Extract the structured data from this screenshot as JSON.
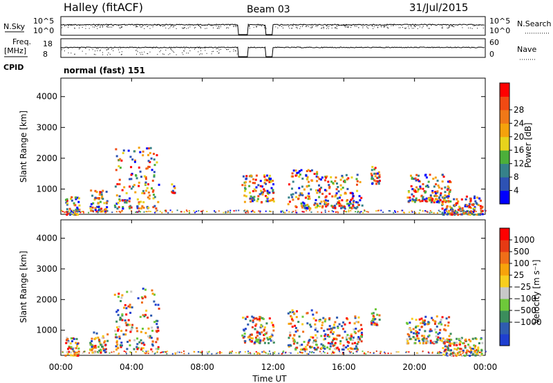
{
  "header": {
    "station": "Halley (fitACF)",
    "beam": "Beam 03",
    "date": "31/Jul/2015"
  },
  "info_panel": {
    "nsky_label": "N.Sky",
    "nsky_ticks": [
      "10^5",
      "10^0"
    ],
    "nsearch_label": "N.Search",
    "nsearch_ticks": [
      "10^5",
      "10^0"
    ],
    "freq_label": "Freq.",
    "freq_unit": "[MHz]",
    "freq_ticks": [
      "18",
      "8"
    ],
    "nave_label": "Nave",
    "nave_ticks": [
      "60",
      "0"
    ],
    "cpid_label": "CPID",
    "cpid_value": "normal (fast) 151"
  },
  "chart_data": [
    {
      "type": "heatmap",
      "title": "",
      "xlabel": "Time UT",
      "ylabel": "Slant Range [km]",
      "ylim": [
        180,
        4600
      ],
      "yticks": [
        1000,
        2000,
        3000,
        4000
      ],
      "colorbar": {
        "label": "Power [dB]",
        "ticks": [
          "4",
          "8",
          "12",
          "16",
          "20",
          "24",
          "28"
        ],
        "colors": [
          "#0000ff",
          "#2d52b4",
          "#36828a",
          "#4caf3a",
          "#e7d31c",
          "#f5a20c",
          "#f07818",
          "#f14a13",
          "#ff0000"
        ]
      },
      "series": [
        {
          "x": [
            0.2,
            1.0
          ],
          "y": [
            200,
            800
          ]
        },
        {
          "x": [
            1.6,
            2.6
          ],
          "y": [
            300,
            1000
          ]
        },
        {
          "x": [
            3.0,
            5.5
          ],
          "y": [
            400,
            2400
          ]
        },
        {
          "x": [
            6.2,
            6.4
          ],
          "y": [
            900,
            1200
          ]
        },
        {
          "x": [
            10.2,
            12.0
          ],
          "y": [
            600,
            1500
          ]
        },
        {
          "x": [
            12.8,
            14.5
          ],
          "y": [
            400,
            1700
          ]
        },
        {
          "x": [
            14.5,
            17.0
          ],
          "y": [
            400,
            1500
          ]
        },
        {
          "x": [
            17.5,
            18.0
          ],
          "y": [
            1200,
            1800
          ]
        },
        {
          "x": [
            19.5,
            22.0
          ],
          "y": [
            600,
            1500
          ]
        },
        {
          "x": [
            21.5,
            23.8
          ],
          "y": [
            200,
            800
          ]
        }
      ]
    },
    {
      "type": "heatmap",
      "title": "",
      "xlabel": "Time UT",
      "ylabel": "Slant Range [km]",
      "ylim": [
        180,
        4600
      ],
      "yticks": [
        1000,
        2000,
        3000,
        4000
      ],
      "xticks": [
        "00:00",
        "04:00",
        "08:00",
        "12:00",
        "16:00",
        "20:00",
        "00:00"
      ],
      "colorbar": {
        "label": "Velocity [m s⁻¹]",
        "ticks": [
          "1000",
          "500",
          "100",
          "25",
          "−25",
          "−100",
          "−500",
          "−1000"
        ],
        "colors": [
          "#1f3fd0",
          "#2f5cb0",
          "#3b8d5c",
          "#6ec83a",
          "#c8c8c8",
          "#f8ce1e",
          "#f7a30b",
          "#f06e18",
          "#e63a14",
          "#ff0000"
        ]
      },
      "series": [
        {
          "x": [
            0.2,
            1.0
          ],
          "y": [
            200,
            800
          ]
        },
        {
          "x": [
            1.6,
            2.6
          ],
          "y": [
            300,
            1000
          ]
        },
        {
          "x": [
            3.0,
            5.5
          ],
          "y": [
            400,
            2400
          ]
        },
        {
          "x": [
            10.2,
            12.0
          ],
          "y": [
            600,
            1500
          ]
        },
        {
          "x": [
            12.8,
            14.5
          ],
          "y": [
            400,
            1700
          ]
        },
        {
          "x": [
            14.5,
            17.0
          ],
          "y": [
            400,
            1500
          ]
        },
        {
          "x": [
            17.5,
            18.0
          ],
          "y": [
            1200,
            1800
          ]
        },
        {
          "x": [
            19.5,
            22.0
          ],
          "y": [
            600,
            1500
          ]
        },
        {
          "x": [
            21.5,
            23.8
          ],
          "y": [
            200,
            800
          ]
        }
      ]
    }
  ]
}
